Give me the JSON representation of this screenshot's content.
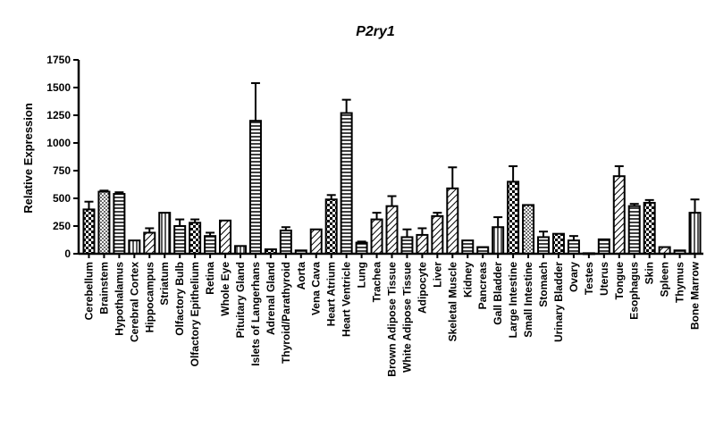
{
  "chart_data": {
    "type": "bar",
    "title": "P2ry1",
    "ylabel": "Relative Expression",
    "xlabel": "",
    "ylim": [
      0,
      1750
    ],
    "yticks": [
      0,
      250,
      500,
      750,
      1000,
      1250,
      1500,
      1750
    ],
    "grid": false,
    "categories": [
      "Cerebellum",
      "Brainstem",
      "Hypothalamus",
      "Cerebral Cortex",
      "Hippocampus",
      "Striatum",
      "Olfactory Bulb",
      "Olfactory Epithelium",
      "Retina",
      "Whole Eye",
      "Pituitary Gland",
      "Islets of Langerhans",
      "Adrenal Gland",
      "Thyroid/Parathyroid",
      "Aorta",
      "Vena Cava",
      "Heart Atrium",
      "Heart Ventricle",
      "Lung",
      "Trachea",
      "Brown Adipose Tissue",
      "White Adipose Tissue",
      "Adipocyte",
      "Liver",
      "Skeletal Muscle",
      "Kidney",
      "Pancreas",
      "Gall Bladder",
      "Large Intestine",
      "Small Intestine",
      "Stomach",
      "Urinary Bladder",
      "Ovary",
      "Testes",
      "Uterus",
      "Tongue",
      "Esophagus",
      "Skin",
      "Spleen",
      "Thymus",
      "Bone Marrow"
    ],
    "values": [
      400,
      560,
      540,
      120,
      190,
      370,
      250,
      280,
      160,
      300,
      70,
      1200,
      40,
      210,
      30,
      220,
      490,
      1270,
      100,
      310,
      430,
      150,
      170,
      340,
      590,
      120,
      60,
      240,
      650,
      440,
      150,
      180,
      120,
      5,
      130,
      700,
      430,
      460,
      60,
      30,
      370
    ],
    "errors": [
      70,
      10,
      15,
      0,
      40,
      0,
      60,
      30,
      30,
      0,
      0,
      340,
      0,
      30,
      0,
      0,
      40,
      120,
      10,
      60,
      90,
      70,
      60,
      30,
      190,
      0,
      0,
      90,
      140,
      0,
      50,
      0,
      40,
      0,
      0,
      90,
      20,
      25,
      0,
      0,
      120
    ],
    "patterns": [
      "cross",
      "dots",
      "hlines",
      "vlines",
      "diag",
      "vlines",
      "hlines",
      "cross",
      "hlines",
      "diag",
      "vlines",
      "hlines",
      "cross",
      "hlines",
      "hlines",
      "diag",
      "cross",
      "hlines",
      "hlines",
      "diag",
      "diag",
      "hlines",
      "diag",
      "diag",
      "diag",
      "hlines",
      "hlines",
      "vlines",
      "cross",
      "dots",
      "hlines",
      "cross",
      "hlines",
      "hlines",
      "hlines",
      "diag",
      "hlines",
      "cross",
      "diag",
      "hlines",
      "vlines"
    ]
  }
}
